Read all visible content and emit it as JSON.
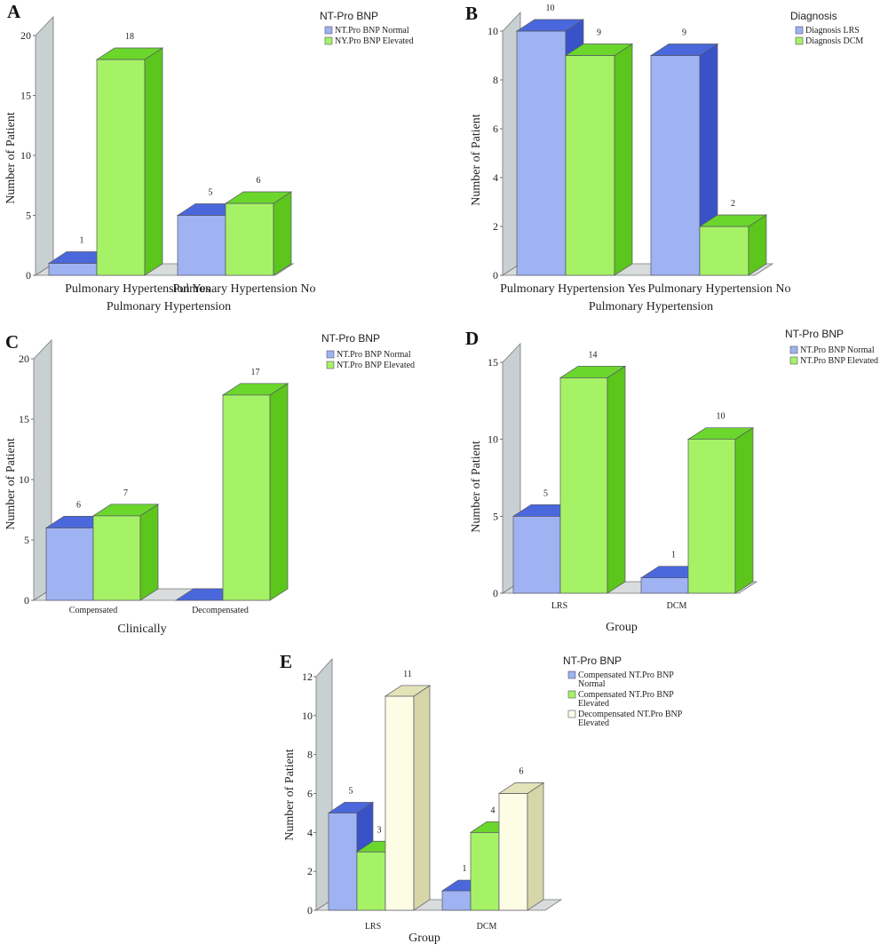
{
  "colors": {
    "blue": "#9fb2f2",
    "blue_top": "#4a68dc",
    "blue_side": "#3a52c8",
    "green": "#a6f266",
    "green_top": "#6bd62c",
    "green_side": "#5cc61c",
    "cream": "#fdfde6",
    "cream_top": "#e3e3b8",
    "cream_side": "#d6d6a8",
    "wall": "#c8d0d2",
    "floor": "#d8dcdc"
  },
  "chart_data": [
    {
      "id": "A",
      "type": "bar",
      "panel_label": "A",
      "xlabel": "Pulmonary Hypertension",
      "ylabel": "Number of Patient",
      "categories": [
        "Pulmonary Hypertension Yes",
        "Pulmonary Hypertension No"
      ],
      "legend_title": "NT-Pro BNP",
      "series": [
        {
          "name": "NT.Pro BNP Normal",
          "color": "blue",
          "values": [
            1,
            5
          ]
        },
        {
          "name": "NY.Pro BNP Elevated",
          "color": "green",
          "values": [
            18,
            6
          ]
        }
      ],
      "yticks": [
        "0",
        "5",
        "10",
        "15",
        "20"
      ],
      "ylim": [
        0,
        20
      ]
    },
    {
      "id": "B",
      "type": "bar",
      "panel_label": "B",
      "xlabel": "Pulmonary Hypertension",
      "ylabel": "Number of Patient",
      "categories": [
        "Pulmonary Hypertension Yes",
        "Pulmonary Hypertension No"
      ],
      "legend_title": "Diagnosis",
      "series": [
        {
          "name": "Diagnosis LRS",
          "color": "blue",
          "values": [
            10,
            9
          ]
        },
        {
          "name": "Diagnosis DCM",
          "color": "green",
          "values": [
            9,
            2
          ]
        }
      ],
      "yticks": [
        "0",
        "2",
        "4",
        "6",
        "8",
        "10"
      ],
      "ylim": [
        0,
        10
      ]
    },
    {
      "id": "C",
      "type": "bar",
      "panel_label": "C",
      "xlabel": "Clinically",
      "ylabel": "Number of Patient",
      "categories": [
        "Compensated",
        "Decompensated"
      ],
      "legend_title": "NT-Pro BNP",
      "series": [
        {
          "name": "NT.Pro BNP Normal",
          "color": "blue",
          "values": [
            6,
            0
          ]
        },
        {
          "name": "NT.Pro BNP Elevated",
          "color": "green",
          "values": [
            7,
            17
          ]
        }
      ],
      "yticks": [
        "0",
        "5",
        "10",
        "15",
        "20"
      ],
      "ylim": [
        0,
        20
      ]
    },
    {
      "id": "D",
      "type": "bar",
      "panel_label": "D",
      "xlabel": "Group",
      "ylabel": "Number of Patient",
      "categories": [
        "LRS",
        "DCM"
      ],
      "legend_title": "NT-Pro BNP",
      "series": [
        {
          "name": "NT.Pro BNP Normal",
          "color": "blue",
          "values": [
            5,
            1
          ]
        },
        {
          "name": "NT.Pro BNP Elevated",
          "color": "green",
          "values": [
            14,
            10
          ]
        }
      ],
      "yticks": [
        "0",
        "5",
        "10",
        "15"
      ],
      "ylim": [
        0,
        15
      ]
    },
    {
      "id": "E",
      "type": "bar",
      "panel_label": "E",
      "xlabel": "Group",
      "ylabel": "Number of Patient",
      "categories": [
        "LRS",
        "DCM"
      ],
      "legend_title": "NT-Pro BNP",
      "series": [
        {
          "name": "Compensated NT.Pro BNP Normal",
          "color": "blue",
          "values": [
            5,
            1
          ]
        },
        {
          "name": "Compensated NT.Pro BNP Elevated",
          "color": "green",
          "values": [
            3,
            4
          ]
        },
        {
          "name": "Decompensated NT.Pro BNP Elevated",
          "color": "cream",
          "values": [
            11,
            6
          ]
        }
      ],
      "yticks": [
        "0",
        "2",
        "4",
        "6",
        "8",
        "10",
        "12"
      ],
      "ylim": [
        0,
        12
      ]
    }
  ]
}
